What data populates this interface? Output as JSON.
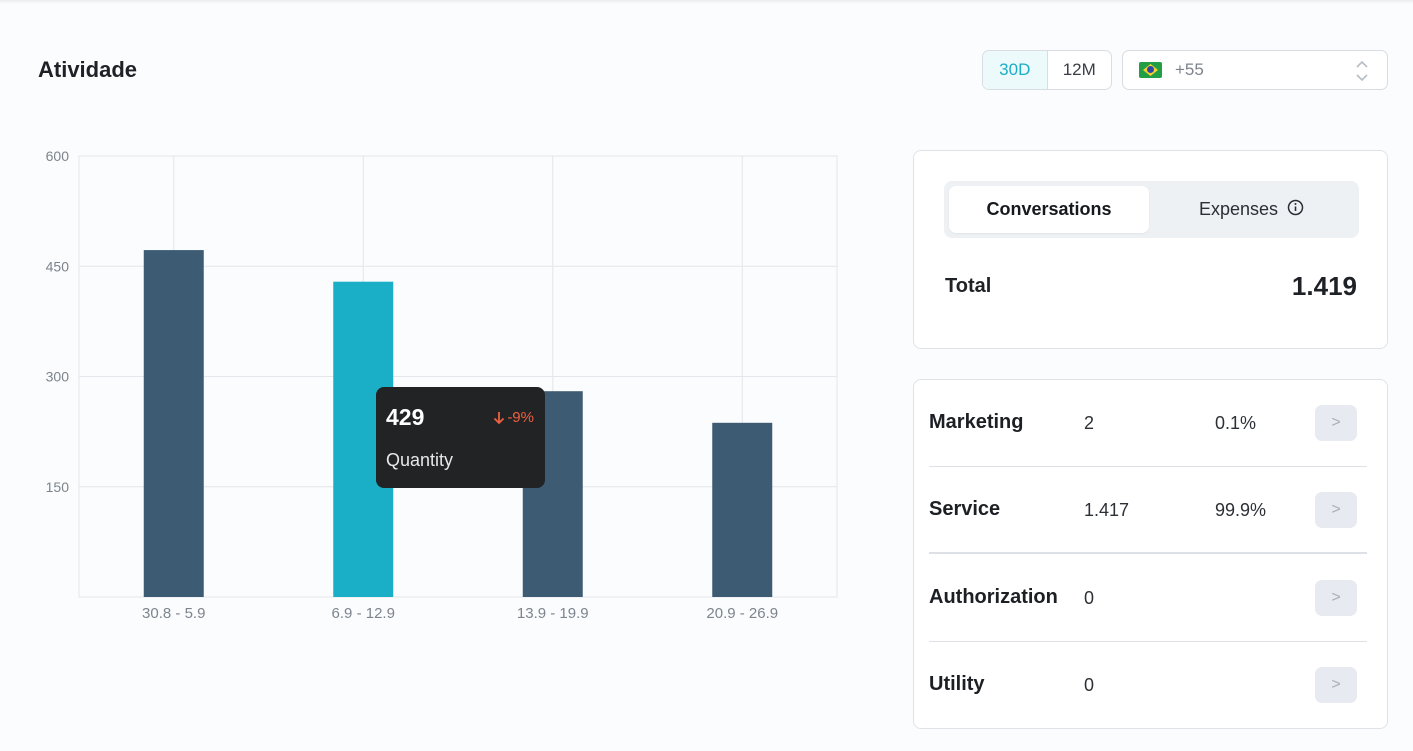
{
  "header": {
    "title": "Atividade",
    "period_options": [
      "30D",
      "12M"
    ],
    "active_period": "30D",
    "country": {
      "flag_icon": "brazil-flag-icon",
      "dial_code": "+55"
    }
  },
  "chart_data": {
    "type": "bar",
    "categories": [
      "30.8 - 5.9",
      "6.9 - 12.9",
      "13.9 - 19.9",
      "20.9 - 26.9"
    ],
    "values": [
      472,
      429,
      280,
      237
    ],
    "ylim": [
      0,
      600
    ],
    "yticks": [
      150,
      300,
      450,
      600
    ],
    "grid": true,
    "colors": {
      "default": "#3d5c73",
      "highlight": "#1aafc6"
    },
    "highlight_index": 1,
    "tooltip": {
      "value": "429",
      "change": "-9%",
      "label": "Quantity",
      "change_color": "#ee6140"
    }
  },
  "totals": {
    "tabs": [
      "Conversations",
      "Expenses"
    ],
    "active_tab": "Conversations",
    "total_label": "Total",
    "total_value": "1.419"
  },
  "breakdown": [
    {
      "name": "Marketing",
      "count": "2",
      "percent": "0.1%",
      "action": ">"
    },
    {
      "name": "Service",
      "count": "1.417",
      "percent": "99.9%",
      "action": ">"
    },
    {
      "name": "Authorization",
      "count": "0",
      "percent": "",
      "action": ">"
    },
    {
      "name": "Utility",
      "count": "0",
      "percent": "",
      "action": ">"
    }
  ]
}
